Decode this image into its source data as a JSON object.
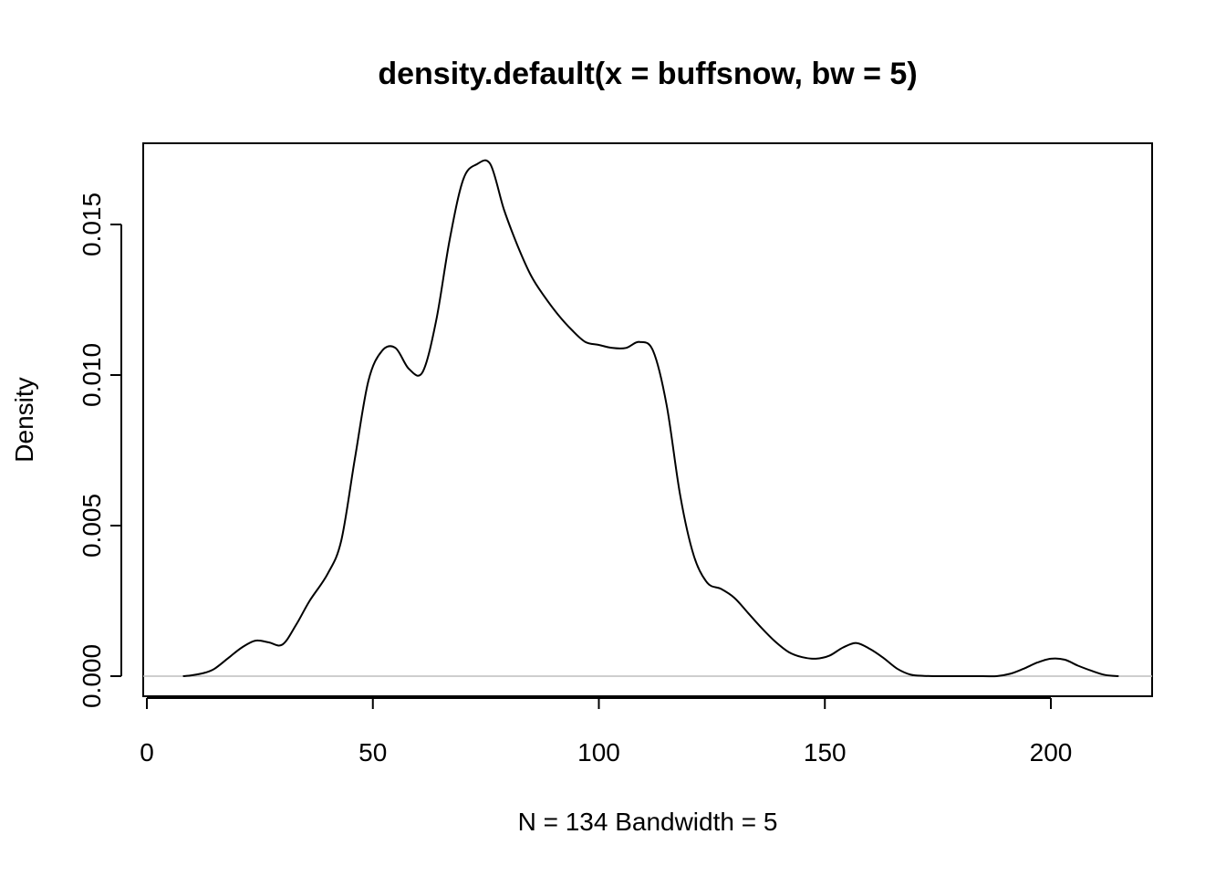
{
  "chart_data": {
    "type": "line",
    "title": "density.default(x = buffsnow, bw = 5)",
    "xlabel": "N = 134   Bandwidth = 5",
    "ylabel": "Density",
    "xlim": [
      0,
      220
    ],
    "ylim": [
      0,
      0.0175
    ],
    "x_ticks": [
      0,
      50,
      100,
      150,
      200
    ],
    "x_tick_labels": [
      "0",
      "50",
      "100",
      "150",
      "200"
    ],
    "y_ticks": [
      0,
      0.005,
      0.01,
      0.015
    ],
    "y_tick_labels": [
      "0.000",
      "0.005",
      "0.010",
      "0.015"
    ],
    "grid": false,
    "legend": "none",
    "baseline": 0,
    "colors": {
      "line": "#000000",
      "baseline": "#bebebe",
      "frame": "#000000"
    },
    "series": [
      {
        "x": [
          8,
          10,
          13,
          15,
          18,
          21,
          24,
          27,
          30,
          33,
          36,
          40,
          43,
          46,
          49,
          52,
          55,
          58,
          61,
          64,
          67,
          70,
          73,
          76,
          79,
          82,
          85,
          88,
          91,
          94,
          97,
          100,
          103,
          106,
          109,
          112,
          115,
          118,
          121,
          124,
          127,
          130,
          133,
          136,
          139,
          142,
          145,
          148,
          151,
          154,
          157,
          160,
          163,
          166,
          169,
          172,
          175,
          180,
          185,
          188,
          191,
          194,
          197,
          200,
          203,
          206,
          209,
          212,
          215
        ],
        "values": [
          0.0,
          3e-05,
          0.00012,
          0.00025,
          0.0006,
          0.00095,
          0.00118,
          0.00112,
          0.00105,
          0.0017,
          0.0025,
          0.0034,
          0.0045,
          0.0072,
          0.0098,
          0.0108,
          0.0109,
          0.0102,
          0.0101,
          0.0118,
          0.0145,
          0.0165,
          0.017,
          0.017,
          0.0155,
          0.0143,
          0.0133,
          0.0126,
          0.012,
          0.0115,
          0.0111,
          0.011,
          0.0109,
          0.0109,
          0.0111,
          0.0108,
          0.009,
          0.006,
          0.004,
          0.0031,
          0.0029,
          0.0026,
          0.0021,
          0.0016,
          0.00115,
          0.0008,
          0.00063,
          0.00058,
          0.00068,
          0.00095,
          0.0011,
          0.0009,
          0.0006,
          0.00025,
          5e-05,
          1e-05,
          0.0,
          0.0,
          0.0,
          0.0,
          8e-05,
          0.00025,
          0.00045,
          0.00058,
          0.00055,
          0.00035,
          0.00018,
          4e-05,
          0.0
        ]
      }
    ]
  }
}
